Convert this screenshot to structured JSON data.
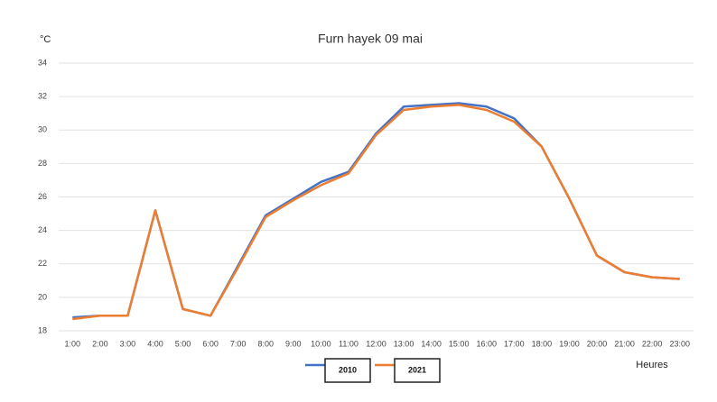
{
  "chart_data": {
    "type": "line",
    "title": "Furn hayek 09 mai",
    "y_label": "°C",
    "x_label": "Heures",
    "categories": [
      "1:00",
      "2:00",
      "3:00",
      "4:00",
      "5:00",
      "6:00",
      "7:00",
      "8:00",
      "9:00",
      "10:00",
      "11:00",
      "12:00",
      "13:00",
      "14:00",
      "15:00",
      "16:00",
      "17:00",
      "18:00",
      "19:00",
      "20:00",
      "21:00",
      "22:00",
      "23:00"
    ],
    "series": [
      {
        "name": "2010",
        "color": "#4472c4",
        "values": [
          18.8,
          18.9,
          18.9,
          25.2,
          19.3,
          18.9,
          21.9,
          24.9,
          25.9,
          26.9,
          27.5,
          29.8,
          31.4,
          31.5,
          31.6,
          31.4,
          30.7,
          29.0,
          25.9,
          22.5,
          21.5,
          21.2,
          21.1
        ]
      },
      {
        "name": "2021",
        "color": "#ed7d31",
        "values": [
          18.7,
          18.9,
          18.9,
          25.2,
          19.3,
          18.9,
          21.8,
          24.8,
          25.8,
          26.7,
          27.4,
          29.7,
          31.2,
          31.4,
          31.5,
          31.2,
          30.5,
          29.0,
          25.9,
          22.5,
          21.5,
          21.2,
          21.1
        ]
      }
    ],
    "ylim": [
      18,
      34
    ],
    "yticks": [
      18,
      20,
      22,
      24,
      26,
      28,
      30,
      32,
      34
    ],
    "grid": true,
    "legend": "bottom"
  }
}
